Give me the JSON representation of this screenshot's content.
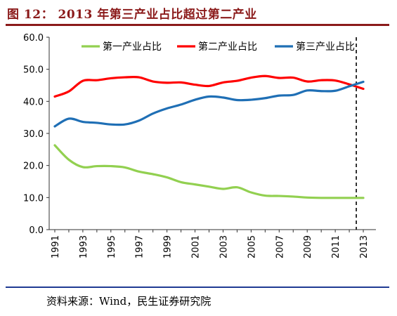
{
  "title": "图 12： 2013 年第三产业占比超过第二产业",
  "source": "资料来源：Wind，民生证券研究院",
  "chart_data": {
    "type": "line",
    "x": [
      1991,
      1992,
      1993,
      1994,
      1995,
      1996,
      1997,
      1998,
      1999,
      2000,
      2001,
      2002,
      2003,
      2004,
      2005,
      2006,
      2007,
      2008,
      2009,
      2010,
      2011,
      2012,
      2013
    ],
    "x_tick_labels": [
      "1991",
      "1993",
      "1995",
      "1997",
      "1999",
      "2001",
      "2003",
      "2005",
      "2007",
      "2009",
      "2011",
      "2013"
    ],
    "y_tick_labels": [
      "0.0",
      "10.0",
      "20.0",
      "30.0",
      "40.0",
      "50.0",
      "60.0"
    ],
    "ylim": [
      0,
      60
    ],
    "grid": false,
    "legend_position": "top",
    "series": [
      {
        "name": "第一产业占比",
        "color": "#92D050",
        "values": [
          26.3,
          21.8,
          19.5,
          19.8,
          19.8,
          19.4,
          18.1,
          17.3,
          16.3,
          14.8,
          14.1,
          13.4,
          12.7,
          13.2,
          11.6,
          10.6,
          10.5,
          10.3,
          10.0,
          9.9,
          9.9,
          9.9,
          9.9
        ]
      },
      {
        "name": "第二产业占比",
        "color": "#FF0000",
        "values": [
          41.5,
          43.1,
          46.4,
          46.6,
          47.2,
          47.5,
          47.5,
          46.2,
          45.8,
          45.9,
          45.2,
          44.8,
          45.9,
          46.4,
          47.4,
          47.9,
          47.3,
          47.4,
          46.2,
          46.6,
          46.5,
          45.3,
          43.9
        ]
      },
      {
        "name": "第三产业占比",
        "color": "#1F6FB5",
        "values": [
          32.2,
          34.6,
          33.6,
          33.3,
          32.8,
          32.8,
          34.0,
          36.2,
          37.8,
          39.0,
          40.5,
          41.5,
          41.2,
          40.4,
          40.5,
          41.0,
          41.8,
          42.0,
          43.4,
          43.2,
          43.3,
          44.7,
          46.1
        ]
      }
    ],
    "reference_line": {
      "x": 2012.5,
      "style": "dashed"
    }
  }
}
